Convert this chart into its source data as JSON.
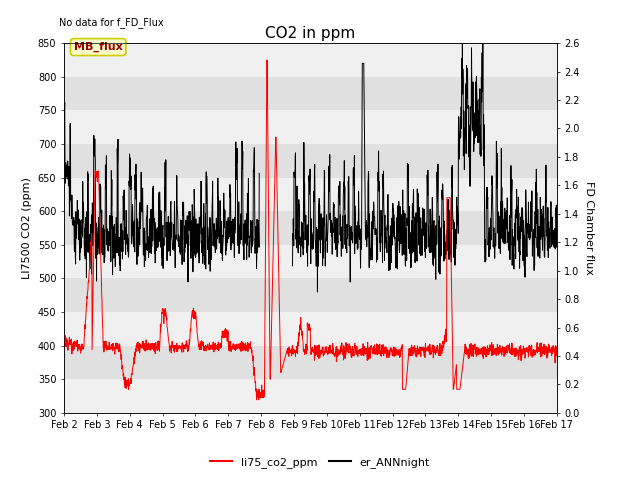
{
  "title": "CO2 in ppm",
  "no_data_text": "No data for f_FD_Flux",
  "mb_flux_label": "MB_flux",
  "ylabel_left": "LI7500 CO2 (ppm)",
  "ylabel_right": "FD Chamber flux",
  "ylim_left": [
    300,
    850
  ],
  "ylim_right": [
    0.0,
    2.6
  ],
  "yticks_left": [
    300,
    350,
    400,
    450,
    500,
    550,
    600,
    650,
    700,
    750,
    800,
    850
  ],
  "yticks_right": [
    0.0,
    0.2,
    0.4,
    0.6,
    0.8,
    1.0,
    1.2,
    1.4,
    1.6,
    1.8,
    2.0,
    2.2,
    2.4,
    2.6
  ],
  "xticklabels": [
    "Feb 2",
    "Feb 3",
    "Feb 4",
    "Feb 5",
    "Feb 6",
    "Feb 7",
    "Feb 8",
    "Feb 9",
    "Feb 10",
    "Feb 11",
    "Feb 12",
    "Feb 13",
    "Feb 14",
    "Feb 15",
    "Feb 16",
    "Feb 17"
  ],
  "line_red_label": "li75_co2_ppm",
  "line_black_label": "er_ANNnight",
  "line_red_color": "#ff0000",
  "line_black_color": "#000000",
  "background_color": "#ffffff",
  "band_color_light": "#f0f0f0",
  "band_color_dark": "#e0e0e0",
  "mb_flux_facecolor": "#ffffcc",
  "mb_flux_edgecolor": "#cccc00",
  "mb_flux_textcolor": "#990000",
  "title_fontsize": 11,
  "label_fontsize": 8,
  "tick_fontsize": 7,
  "legend_fontsize": 8
}
